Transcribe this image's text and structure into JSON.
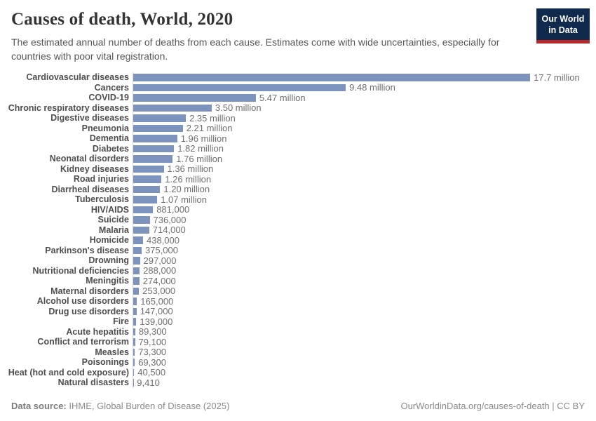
{
  "header": {
    "title": "Causes of death, World, 2020",
    "subtitle": "The estimated annual number of deaths from each cause. Estimates come with wide uncertainties, especially for countries with poor vital registration.",
    "logo": {
      "line1": "Our World",
      "line2": "in Data"
    }
  },
  "chart_data": {
    "type": "bar",
    "orientation": "horizontal",
    "title": "Causes of death, World, 2020",
    "xlabel": "",
    "ylabel": "",
    "xlim": [
      0,
      17700000
    ],
    "grid": false,
    "legend": "none",
    "categories": [
      "Cardiovascular diseases",
      "Cancers",
      "COVID-19",
      "Chronic respiratory diseases",
      "Digestive diseases",
      "Pneumonia",
      "Dementia",
      "Diabetes",
      "Neonatal disorders",
      "Kidney diseases",
      "Road injuries",
      "Diarrheal diseases",
      "Tuberculosis",
      "HIV/AIDS",
      "Suicide",
      "Malaria",
      "Homicide",
      "Parkinson's disease",
      "Drowning",
      "Nutritional deficiencies",
      "Meningitis",
      "Maternal disorders",
      "Alcohol use disorders",
      "Drug use disorders",
      "Fire",
      "Acute hepatitis",
      "Conflict and terrorism",
      "Measles",
      "Poisonings",
      "Heat (hot and cold exposure)",
      "Natural disasters"
    ],
    "values": [
      17700000,
      9480000,
      5470000,
      3500000,
      2350000,
      2210000,
      1960000,
      1820000,
      1760000,
      1360000,
      1260000,
      1200000,
      1070000,
      881000,
      736000,
      714000,
      438000,
      375000,
      297000,
      288000,
      274000,
      253000,
      165000,
      147000,
      139000,
      89300,
      79100,
      73300,
      69300,
      40500,
      9410
    ],
    "value_labels": [
      "17.7 million",
      "9.48 million",
      "5.47 million",
      "3.50 million",
      "2.35 million",
      "2.21 million",
      "1.96 million",
      "1.82 million",
      "1.76 million",
      "1.36 million",
      "1.26 million",
      "1.20 million",
      "1.07 million",
      "881,000",
      "736,000",
      "714,000",
      "438,000",
      "375,000",
      "297,000",
      "288,000",
      "274,000",
      "253,000",
      "165,000",
      "147,000",
      "139,000",
      "89,300",
      "79,100",
      "73,300",
      "69,300",
      "40,500",
      "9,410"
    ]
  },
  "footer": {
    "source_label": "Data source:",
    "source_text": " IHME, Global Burden of Disease (2025)",
    "link_text": "OurWorldinData.org/causes-of-death | CC BY"
  },
  "colors": {
    "bar": "#7b93bd",
    "logo_navy": "#102a4e",
    "logo_red": "#b5262d",
    "axis_line": "#d9d9d9",
    "label_text": "#4e4e4e",
    "value_text": "#6e6e6e"
  }
}
